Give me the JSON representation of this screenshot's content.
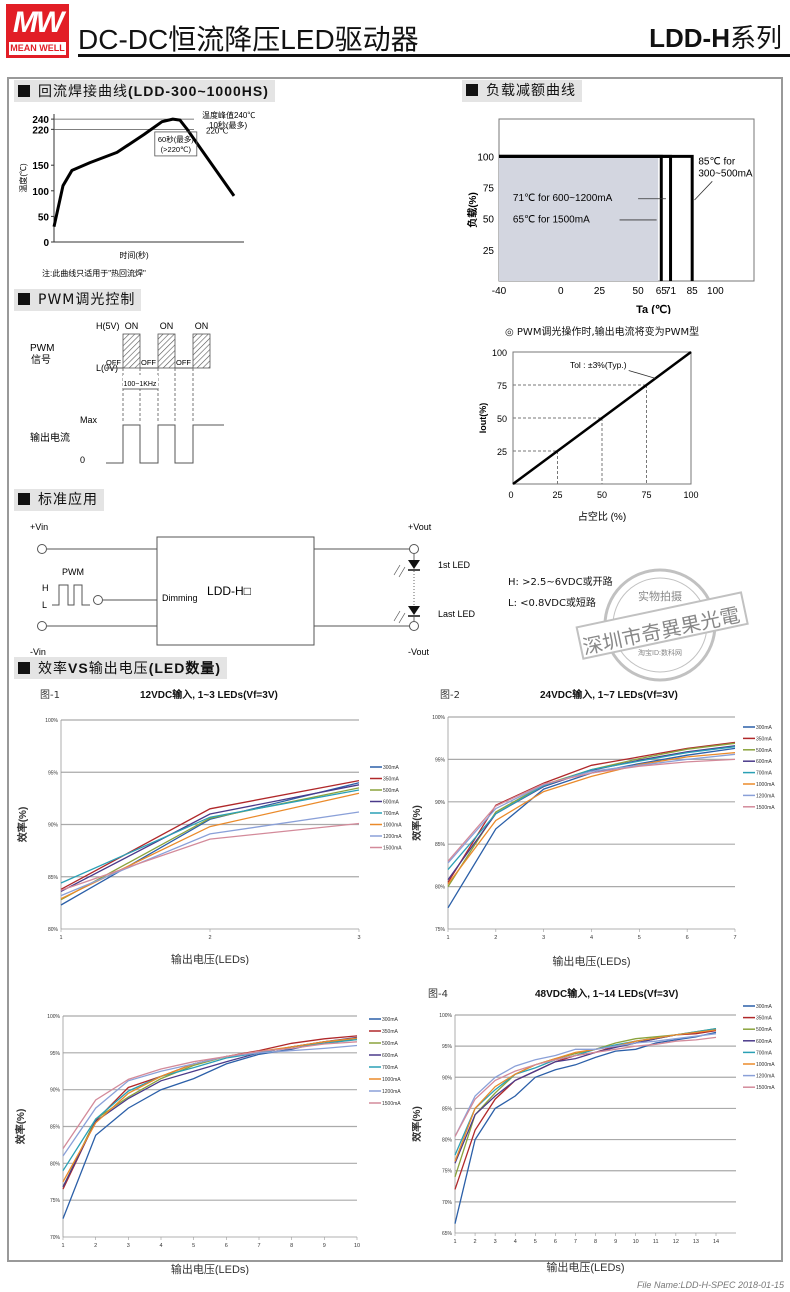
{
  "header": {
    "logo_top": "MW",
    "logo_bottom": "MEAN WELL",
    "title": "DC-DC恒流降压LED驱动器",
    "series_model": "LDD-H",
    "series_suffix": "系列"
  },
  "sections": {
    "reflow": {
      "heading_cn": "回流焊接曲线",
      "heading_model": "(LDD-300~1000HS)"
    },
    "derating": {
      "heading": "负载减额曲线"
    },
    "pwm": {
      "heading": "PWM调光控制"
    },
    "application": {
      "heading": "标准应用"
    },
    "efficiency": {
      "heading_a": "效率",
      "heading_b": "VS",
      "heading_c": "输出电压",
      "heading_d": "(LED数量)"
    }
  },
  "pwm_diagram": {
    "signal_label": "PWM",
    "signal_label_cn": "信号",
    "high": "H(5V)",
    "low": "L(0V)",
    "on": "ON",
    "off": "OFF",
    "freq": "100~1KHz",
    "max": "Max",
    "output_label": "输出电流",
    "zero": "0"
  },
  "pwm_note": "◎ PWM调光操作时,输出电流将变为PWM型",
  "application": {
    "vin_pos": "+Vin",
    "vin_neg": "-Vin",
    "vout_pos": "+Vout",
    "vout_neg": "-Vout",
    "pwm": "PWM",
    "h": "H",
    "l": "L",
    "dimming": "Dimming",
    "module": "LDD-H□",
    "first_led": "1st LED",
    "last_led": "Last LED",
    "dim_high": "H: >2.5~6VDC或开路",
    "dim_low": "L: <0.8VDC或短路"
  },
  "stamp": {
    "top": "实物拍摄",
    "middle": "深圳市奇異果光電",
    "bottom": "淘宝ID:数科网"
  },
  "footer": "File Name:LDD-H-SPEC   2018-01-15",
  "chart_data": [
    {
      "id": "reflow",
      "type": "line",
      "title": "回流焊接曲线(LDD-300~1000HS)",
      "xlabel": "时间(秒)",
      "ylabel": "温度(℃)",
      "yticks": [
        0,
        50,
        100,
        150,
        220,
        240
      ],
      "ylim": [
        0,
        250
      ],
      "x": [
        0,
        5,
        10,
        20,
        35,
        50,
        60,
        66,
        70,
        74,
        82,
        100
      ],
      "y": [
        30,
        110,
        140,
        155,
        175,
        210,
        235,
        240,
        238,
        220,
        180,
        90
      ],
      "reference_lines": [
        240,
        220
      ],
      "annotations": [
        "温度峰值240℃",
        "10秒(最多)",
        "220℃",
        "60秒(最多)",
        "(>220℃)"
      ],
      "note": "注:此曲线只适用于\"热回流焊\"",
      "grid": false
    },
    {
      "id": "derating",
      "type": "line",
      "title": "负载减额曲线",
      "xlabel": "Ta (℃)",
      "ylabel": "负载(%)",
      "xticks": [
        -40,
        0,
        25,
        50,
        65,
        71,
        85,
        100
      ],
      "yticks": [
        25,
        50,
        75,
        100
      ],
      "xlim": [
        -40,
        125
      ],
      "ylim": [
        0,
        130
      ],
      "series": [
        {
          "name": "85℃ for 300~500mA",
          "x": [
            -40,
            85,
            85
          ],
          "y": [
            100,
            100,
            0
          ]
        },
        {
          "name": "71℃ for 600~1200mA",
          "x": [
            -40,
            71,
            71
          ],
          "y": [
            100,
            100,
            0
          ]
        },
        {
          "name": "65℃ for 1500mA",
          "x": [
            -40,
            65,
            65
          ],
          "y": [
            100,
            100,
            0
          ]
        }
      ],
      "shaded_region": {
        "x": [
          -40,
          63
        ],
        "y": [
          0,
          100
        ],
        "color": "#d3d6e0"
      },
      "grid": false
    },
    {
      "id": "pwm_dimming",
      "type": "line",
      "title": "PWM调光操作时,输出电流将变为PWM型",
      "xlabel": "占空比 (%)",
      "ylabel": "Iout(%)",
      "xticks": [
        0,
        25,
        50,
        75,
        100
      ],
      "yticks": [
        0,
        25,
        50,
        75,
        100
      ],
      "x": [
        0,
        100
      ],
      "y": [
        0,
        100
      ],
      "annotation": "Tol : ±3%(Typ.)",
      "xlim": [
        0,
        100
      ],
      "ylim": [
        0,
        100
      ],
      "grid": false
    },
    {
      "id": "fig1",
      "type": "line",
      "fig_label": "图-1",
      "title": "12VDC输入, 1~3 LEDs(Vf=3V)",
      "xlabel": "输出电压(LEDs)",
      "ylabel": "效率(%)",
      "x": [
        1,
        2,
        3
      ],
      "ylim": [
        80,
        100
      ],
      "yticks": [
        80,
        85,
        90,
        95,
        100
      ],
      "legend_position": "right",
      "grid": true,
      "series": [
        {
          "name": "300mA",
          "color": "#2b5fa8",
          "values": [
            82.3,
            90.5,
            94.0
          ]
        },
        {
          "name": "350mA",
          "color": "#b0282a",
          "values": [
            83.8,
            91.5,
            94.2
          ]
        },
        {
          "name": "500mA",
          "color": "#8aa33c",
          "values": [
            82.8,
            90.6,
            93.5
          ]
        },
        {
          "name": "600mA",
          "color": "#4a3a8a",
          "values": [
            83.6,
            91.0,
            93.8
          ]
        },
        {
          "name": "700mA",
          "color": "#2aa0b5",
          "values": [
            84.4,
            90.7,
            93.3
          ]
        },
        {
          "name": "1000mA",
          "color": "#ea8a2a",
          "values": [
            82.9,
            89.8,
            93.0
          ]
        },
        {
          "name": "1200mA",
          "color": "#8aa0d8",
          "values": [
            83.2,
            89.1,
            91.2
          ]
        },
        {
          "name": "1500mA",
          "color": "#d38a9a",
          "values": [
            83.7,
            88.6,
            90.1
          ]
        }
      ]
    },
    {
      "id": "fig2",
      "type": "line",
      "fig_label": "图-2",
      "title": "24VDC输入, 1~7 LEDs(Vf=3V)",
      "xlabel": "输出电压(LEDs)",
      "ylabel": "效率(%)",
      "x": [
        1,
        2,
        3,
        4,
        5,
        6,
        7
      ],
      "ylim": [
        75,
        100
      ],
      "yticks": [
        75,
        80,
        85,
        90,
        95,
        100
      ],
      "legend_position": "right",
      "grid": true,
      "series": [
        {
          "name": "300mA",
          "color": "#2b5fa8",
          "values": [
            77.5,
            86.8,
            91.5,
            93.4,
            94.5,
            95.5,
            96.3
          ]
        },
        {
          "name": "350mA",
          "color": "#b0282a",
          "values": [
            80.5,
            89.6,
            92.2,
            94.3,
            95.3,
            96.3,
            97.0
          ]
        },
        {
          "name": "500mA",
          "color": "#8aa33c",
          "values": [
            80.0,
            88.8,
            92.0,
            93.8,
            95.1,
            96.2,
            96.9
          ]
        },
        {
          "name": "600mA",
          "color": "#4a3a8a",
          "values": [
            80.8,
            88.6,
            91.8,
            93.7,
            94.9,
            95.9,
            96.6
          ]
        },
        {
          "name": "700mA",
          "color": "#2aa0b5",
          "values": [
            82.0,
            88.6,
            91.9,
            93.8,
            94.8,
            95.8,
            96.5
          ]
        },
        {
          "name": "1000mA",
          "color": "#ea8a2a",
          "values": [
            80.3,
            87.8,
            91.2,
            93.0,
            94.4,
            95.3,
            95.8
          ]
        },
        {
          "name": "1200mA",
          "color": "#8aa0d8",
          "values": [
            82.8,
            89.2,
            92.0,
            93.6,
            94.3,
            95.0,
            95.6
          ]
        },
        {
          "name": "1500mA",
          "color": "#d38a9a",
          "values": [
            83.0,
            89.5,
            92.1,
            93.4,
            94.2,
            94.7,
            95.0
          ]
        }
      ]
    },
    {
      "id": "fig3",
      "type": "line",
      "fig_label": "",
      "title": "",
      "xlabel": "输出电压(LEDs)",
      "ylabel": "效率(%)",
      "x": [
        1,
        2,
        3,
        4,
        5,
        6,
        7,
        8,
        9,
        10
      ],
      "ylim": [
        70,
        100
      ],
      "yticks": [
        70,
        75,
        80,
        85,
        90,
        95,
        100
      ],
      "legend_position": "right",
      "grid": true,
      "series": [
        {
          "name": "300mA",
          "color": "#2b5fa8",
          "values": [
            72.5,
            83.8,
            87.5,
            90.0,
            91.5,
            93.5,
            94.8,
            95.5,
            96.5,
            97.0
          ]
        },
        {
          "name": "350mA",
          "color": "#b0282a",
          "values": [
            76.5,
            85.8,
            90.3,
            91.8,
            93.5,
            94.5,
            95.3,
            96.3,
            96.9,
            97.3
          ]
        },
        {
          "name": "500mA",
          "color": "#8aa33c",
          "values": [
            76.8,
            86.0,
            89.0,
            91.5,
            93.3,
            94.5,
            95.0,
            95.8,
            96.5,
            96.8
          ]
        },
        {
          "name": "600mA",
          "color": "#4a3a8a",
          "values": [
            76.8,
            85.7,
            88.8,
            91.2,
            92.5,
            93.8,
            95.0,
            95.8,
            96.5,
            97.1
          ]
        },
        {
          "name": "700mA",
          "color": "#2aa0b5",
          "values": [
            79.0,
            86.0,
            89.8,
            91.8,
            93.0,
            94.3,
            95.0,
            95.8,
            96.3,
            96.8
          ]
        },
        {
          "name": "1000mA",
          "color": "#ea8a2a",
          "values": [
            77.5,
            85.5,
            89.5,
            91.8,
            93.5,
            94.5,
            95.2,
            95.8,
            96.5,
            97.0
          ]
        },
        {
          "name": "1200mA",
          "color": "#8aa0d8",
          "values": [
            81.0,
            87.5,
            91.2,
            92.5,
            93.5,
            94.5,
            95.0,
            95.3,
            95.6,
            96.0
          ]
        },
        {
          "name": "1500mA",
          "color": "#d38a9a",
          "values": [
            82.0,
            88.6,
            91.4,
            92.8,
            93.8,
            94.5,
            95.2,
            95.6,
            96.2,
            96.5
          ]
        }
      ]
    },
    {
      "id": "fig4",
      "type": "line",
      "fig_label": "图-4",
      "title": "48VDC输入, 1~14 LEDs(Vf=3V)",
      "xlabel": "输出电压(LEDs)",
      "ylabel": "效率(%)",
      "x": [
        1,
        2,
        3,
        4,
        5,
        6,
        7,
        8,
        9,
        10,
        11,
        12,
        13,
        14
      ],
      "ylim": [
        65,
        100
      ],
      "yticks": [
        65,
        70,
        75,
        80,
        85,
        90,
        95,
        100
      ],
      "legend_position": "right",
      "grid": true,
      "series": [
        {
          "name": "300mA",
          "color": "#2b5fa8",
          "values": [
            66.5,
            80.0,
            85.0,
            87.0,
            90.0,
            91.2,
            92.0,
            93.2,
            94.2,
            94.5,
            95.5,
            96.0,
            96.5,
            97.2
          ]
        },
        {
          "name": "350mA",
          "color": "#b0282a",
          "values": [
            72.0,
            81.5,
            86.5,
            89.5,
            91.0,
            92.5,
            93.5,
            94.0,
            95.0,
            95.5,
            96.2,
            96.8,
            97.0,
            97.5
          ]
        },
        {
          "name": "500mA",
          "color": "#8aa33c",
          "values": [
            74.0,
            84.0,
            87.5,
            90.5,
            92.0,
            93.0,
            93.8,
            94.5,
            95.5,
            96.2,
            96.5,
            96.8,
            97.3,
            97.8
          ]
        },
        {
          "name": "600mA",
          "color": "#4a3a8a",
          "values": [
            76.2,
            84.0,
            87.0,
            89.5,
            91.0,
            92.5,
            93.0,
            94.0,
            94.8,
            95.5,
            96.2,
            96.8,
            97.2,
            97.7
          ]
        },
        {
          "name": "700mA",
          "color": "#2aa0b5",
          "values": [
            77.5,
            85.0,
            88.0,
            90.5,
            91.5,
            92.8,
            93.5,
            94.5,
            95.2,
            95.8,
            96.3,
            96.8,
            97.3,
            97.8
          ]
        },
        {
          "name": "1000mA",
          "color": "#ea8a2a",
          "values": [
            76.5,
            85.0,
            88.5,
            90.5,
            92.0,
            93.0,
            94.0,
            94.5,
            95.0,
            95.8,
            96.3,
            96.8,
            97.2,
            97.6
          ]
        },
        {
          "name": "1200mA",
          "color": "#8aa0d8",
          "values": [
            80.5,
            87.0,
            90.0,
            91.8,
            92.8,
            93.5,
            94.5,
            94.5,
            95.0,
            95.5,
            95.8,
            96.2,
            96.6,
            97.0
          ]
        },
        {
          "name": "1500mA",
          "color": "#d38a9a",
          "values": [
            80.5,
            86.5,
            89.5,
            91.0,
            92.0,
            92.8,
            93.5,
            94.0,
            94.5,
            95.0,
            95.3,
            95.8,
            96.0,
            96.4
          ]
        }
      ]
    }
  ]
}
